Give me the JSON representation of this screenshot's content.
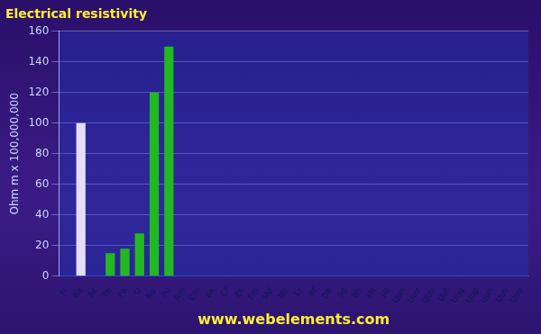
{
  "chart_data": {
    "type": "bar",
    "title": "Electrical resistivity",
    "y_label": "Ohm m x 100,000,000",
    "annotation": "www.webelements.com",
    "categories": [
      "Fr",
      "Ra",
      "Ac",
      "Th",
      "Pa",
      "U",
      "Np",
      "Pu",
      "Am",
      "Cm",
      "Bk",
      "Cf",
      "Es",
      "Fm",
      "Md",
      "No",
      "Lr",
      "Rf",
      "Db",
      "Sg",
      "Bh",
      "Hs",
      "Mt",
      "Uun",
      "Uuu",
      "Uub",
      "Uut",
      "Uuq",
      "Uup",
      "Uuh",
      "Uus",
      "Uuo"
    ],
    "values": [
      null,
      100,
      null,
      15,
      18,
      28,
      120,
      150,
      null,
      null,
      null,
      null,
      null,
      null,
      null,
      null,
      null,
      null,
      null,
      null,
      null,
      null,
      null,
      null,
      null,
      null,
      null,
      null,
      null,
      null,
      null,
      null
    ],
    "colors": [
      "#d8d0f4",
      "#e4ddfb",
      "#22b822",
      "#22b822",
      "#22b822",
      "#22b822",
      "#22b822",
      "#22b822",
      "#22b822",
      "#22b822",
      "#22b822",
      "#22b822",
      "#22b822",
      "#22b822",
      "#22b822",
      "#22b822",
      "#22b822",
      "#dd2222",
      "#dd2222",
      "#dd2222",
      "#dd2222",
      "#dd2222",
      "#dd2222",
      "#dd2222",
      "#dd2222",
      "#e8d020",
      "#555577",
      "#555577",
      "#555577",
      "#555577",
      "#555577",
      "#555577"
    ],
    "ylim": [
      0,
      160
    ],
    "yticks": [
      0,
      20,
      40,
      60,
      80,
      100,
      120,
      140,
      160
    ],
    "grid": true
  }
}
